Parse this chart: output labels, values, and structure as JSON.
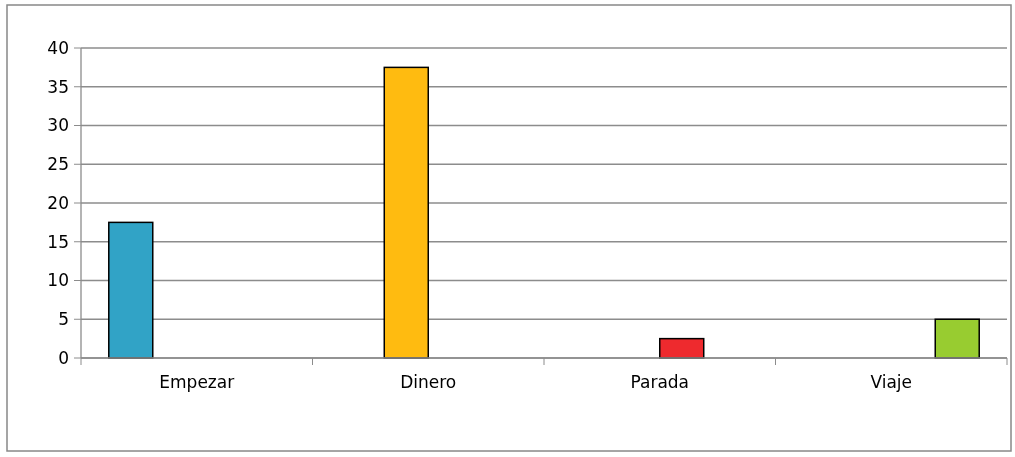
{
  "chart_data": {
    "type": "bar",
    "categories": [
      "Empezar",
      "Dinero",
      "Parada",
      "Viaje"
    ],
    "series": [
      {
        "color": "#31a3c6",
        "values": [
          17.5,
          null,
          null,
          null
        ]
      },
      {
        "color": "#ffbb10",
        "values": [
          null,
          37.5,
          null,
          null
        ]
      },
      {
        "color": "#ee2a2e",
        "values": [
          null,
          null,
          2.5,
          null
        ]
      },
      {
        "color": "#98cc30",
        "values": [
          null,
          null,
          null,
          5
        ]
      }
    ],
    "ylim": [
      0,
      40
    ],
    "yticks": [
      0,
      5,
      10,
      15,
      20,
      25,
      30,
      35,
      40
    ],
    "grid": "y"
  }
}
